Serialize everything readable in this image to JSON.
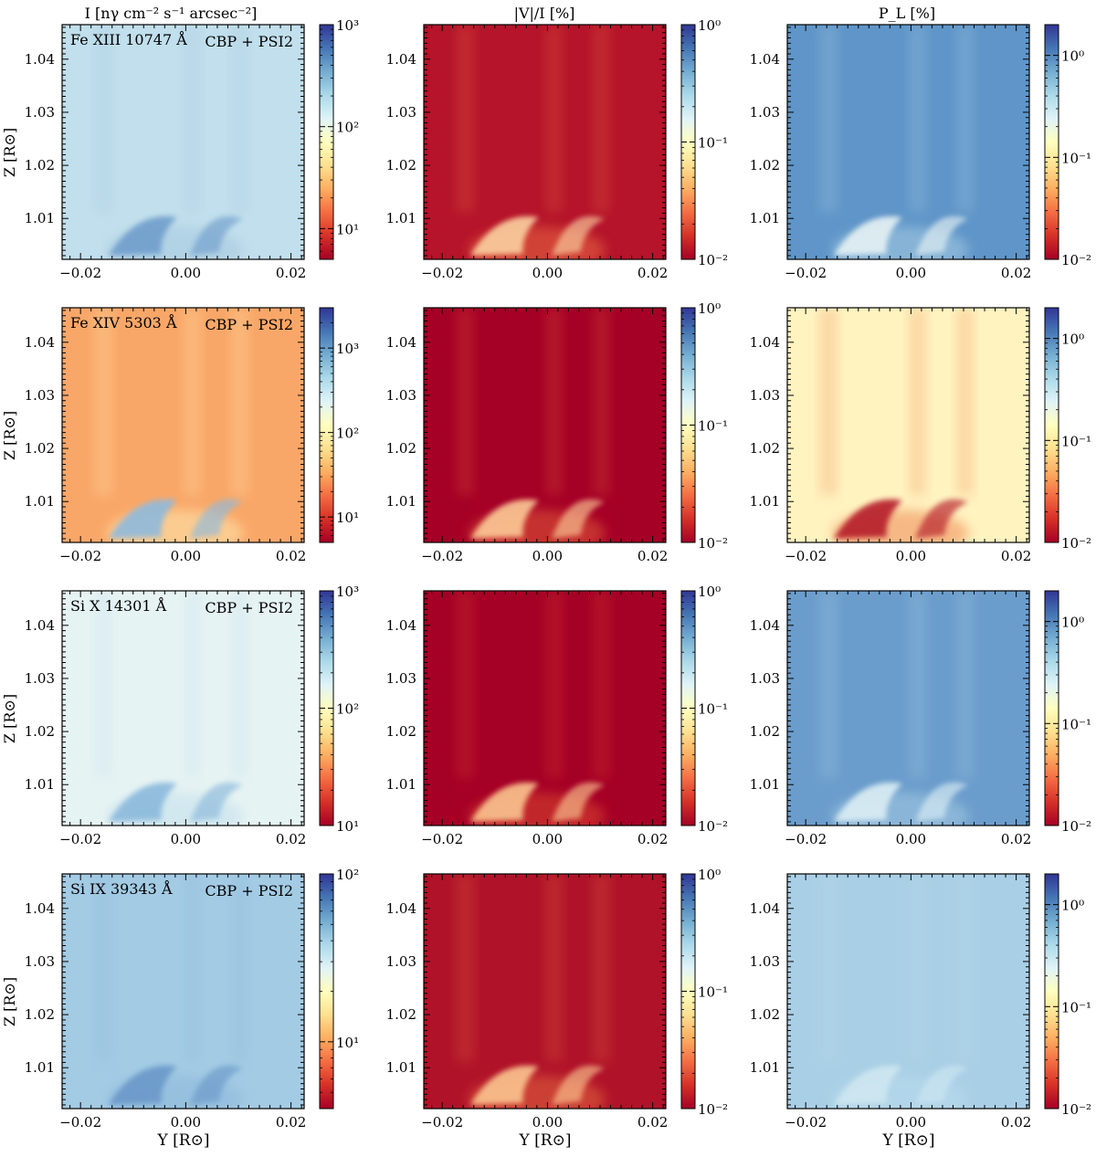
{
  "figure": {
    "column_titles": [
      "I [nγ cm⁻² s⁻¹ arcsec⁻²]",
      "|V|/I [%]",
      "P_L [%]"
    ],
    "row_labels": [
      {
        "line": "Fe XIII 10747 Å",
        "model": "CBP + PSI2"
      },
      {
        "line": "Fe XIV 5303 Å",
        "model": "CBP + PSI2"
      },
      {
        "line": "Si X 14301 Å",
        "model": "CBP + PSI2"
      },
      {
        "line": "Si IX 39343 Å",
        "model": "CBP + PSI2"
      }
    ],
    "ylabel": "Z [R⊙]",
    "xlabel": "Y [R⊙]"
  },
  "chart_data": {
    "type": "heatmap",
    "x_ticks": [
      "−0.02",
      "0.00",
      "0.02"
    ],
    "x_tick_values": [
      -0.02,
      0.0,
      0.02
    ],
    "y_ticks": [
      "1.04",
      "1.03",
      "1.02",
      "1.01"
    ],
    "y_tick_values": [
      1.04,
      1.03,
      1.02,
      1.01
    ],
    "xlim": [
      -0.0235,
      0.0225
    ],
    "ylim": [
      1.0023,
      1.0465
    ],
    "colormap": [
      "#a50026",
      "#d73027",
      "#f46d43",
      "#fdae61",
      "#fee090",
      "#ffffbf",
      "#e0f3f8",
      "#abd9e9",
      "#74add1",
      "#4575b4",
      "#313695"
    ],
    "panels": [
      {
        "row": 0,
        "col": 0,
        "background": "#c1dfec",
        "feature": "#6f9ecc",
        "feature_edge": "#a6c8e0",
        "cbar": {
          "scale": "log",
          "min": 5,
          "max": 1000,
          "ticks": [
            {
              "label": "10³",
              "value": 1000
            },
            {
              "label": "10²",
              "value": 100
            },
            {
              "label": "10¹",
              "value": 10
            }
          ]
        }
      },
      {
        "row": 0,
        "col": 1,
        "background": "#b5142a",
        "feature": "#fbd0a0",
        "feature_edge": "#e8683f",
        "cbar": {
          "scale": "log",
          "min": 0.01,
          "max": 1,
          "ticks": [
            {
              "label": "10⁰",
              "value": 1
            },
            {
              "label": "10⁻¹",
              "value": 0.1
            },
            {
              "label": "10⁻²",
              "value": 0.01
            }
          ]
        }
      },
      {
        "row": 0,
        "col": 2,
        "background": "#5f95c8",
        "feature": "#e6f2f4",
        "feature_edge": "#a7cde3",
        "cbar": {
          "scale": "log",
          "min": 0.01,
          "max": 2,
          "ticks": [
            {
              "label": "10⁰",
              "value": 1
            },
            {
              "label": "10⁻¹",
              "value": 0.1
            },
            {
              "label": "10⁻²",
              "value": 0.01
            }
          ]
        }
      },
      {
        "row": 1,
        "col": 0,
        "background": "#f9a768",
        "feature": "#8fbadc",
        "feature_edge": "#fee9b0",
        "cbar": {
          "scale": "log",
          "min": 5,
          "max": 3000,
          "ticks": [
            {
              "label": "10³",
              "value": 1000
            },
            {
              "label": "10²",
              "value": 100
            },
            {
              "label": "10¹",
              "value": 10
            }
          ]
        }
      },
      {
        "row": 1,
        "col": 1,
        "background": "#a50026",
        "feature": "#fcc996",
        "feature_edge": "#e05a38",
        "cbar": {
          "scale": "log",
          "min": 0.01,
          "max": 1,
          "ticks": [
            {
              "label": "10⁰",
              "value": 1
            },
            {
              "label": "10⁻¹",
              "value": 0.1
            },
            {
              "label": "10⁻²",
              "value": 0.01
            }
          ]
        }
      },
      {
        "row": 1,
        "col": 2,
        "background": "#fff3c0",
        "feature": "#b51a2c",
        "feature_edge": "#f08a55",
        "cbar": {
          "scale": "log",
          "min": 0.01,
          "max": 2,
          "ticks": [
            {
              "label": "10⁰",
              "value": 1
            },
            {
              "label": "10⁻¹",
              "value": 0.1
            },
            {
              "label": "10⁻²",
              "value": 0.01
            }
          ]
        }
      },
      {
        "row": 2,
        "col": 0,
        "background": "#e6f3f3",
        "feature": "#8bb9db",
        "feature_edge": "#c3e0ec",
        "cbar": {
          "scale": "log",
          "min": 10,
          "max": 1000,
          "ticks": [
            {
              "label": "10³",
              "value": 1000
            },
            {
              "label": "10²",
              "value": 100
            },
            {
              "label": "10¹",
              "value": 10
            }
          ]
        }
      },
      {
        "row": 2,
        "col": 1,
        "background": "#a50026",
        "feature": "#fbc48f",
        "feature_edge": "#d9472f",
        "cbar": {
          "scale": "log",
          "min": 0.01,
          "max": 1,
          "ticks": [
            {
              "label": "10⁰",
              "value": 1
            },
            {
              "label": "10⁻¹",
              "value": 0.1
            },
            {
              "label": "10⁻²",
              "value": 0.01
            }
          ]
        }
      },
      {
        "row": 2,
        "col": 2,
        "background": "#6b9dcc",
        "feature": "#dbeef4",
        "feature_edge": "#a5cae2",
        "cbar": {
          "scale": "log",
          "min": 0.01,
          "max": 2,
          "ticks": [
            {
              "label": "10⁰",
              "value": 1
            },
            {
              "label": "10⁻¹",
              "value": 0.1
            },
            {
              "label": "10⁻²",
              "value": 0.01
            }
          ]
        }
      },
      {
        "row": 3,
        "col": 0,
        "background": "#a3cbe4",
        "feature": "#6a98c9",
        "feature_edge": "#8cb8da",
        "cbar": {
          "scale": "log",
          "min": 4,
          "max": 100,
          "ticks": [
            {
              "label": "10²",
              "value": 100
            },
            {
              "label": "10¹",
              "value": 10
            }
          ]
        }
      },
      {
        "row": 3,
        "col": 1,
        "background": "#b01329",
        "feature": "#fbc48f",
        "feature_edge": "#e2653d",
        "cbar": {
          "scale": "log",
          "min": 0.01,
          "max": 1,
          "ticks": [
            {
              "label": "10⁰",
              "value": 1
            },
            {
              "label": "10⁻¹",
              "value": 0.1
            },
            {
              "label": "10⁻²",
              "value": 0.01
            }
          ]
        }
      },
      {
        "row": 3,
        "col": 2,
        "background": "#a9cfe6",
        "feature": "#cfe7f1",
        "feature_edge": "#b9dbec",
        "cbar": {
          "scale": "log",
          "min": 0.01,
          "max": 2,
          "ticks": [
            {
              "label": "10⁰",
              "value": 1
            },
            {
              "label": "10⁻¹",
              "value": 0.1
            },
            {
              "label": "10⁻²",
              "value": 0.01
            }
          ]
        }
      }
    ]
  }
}
